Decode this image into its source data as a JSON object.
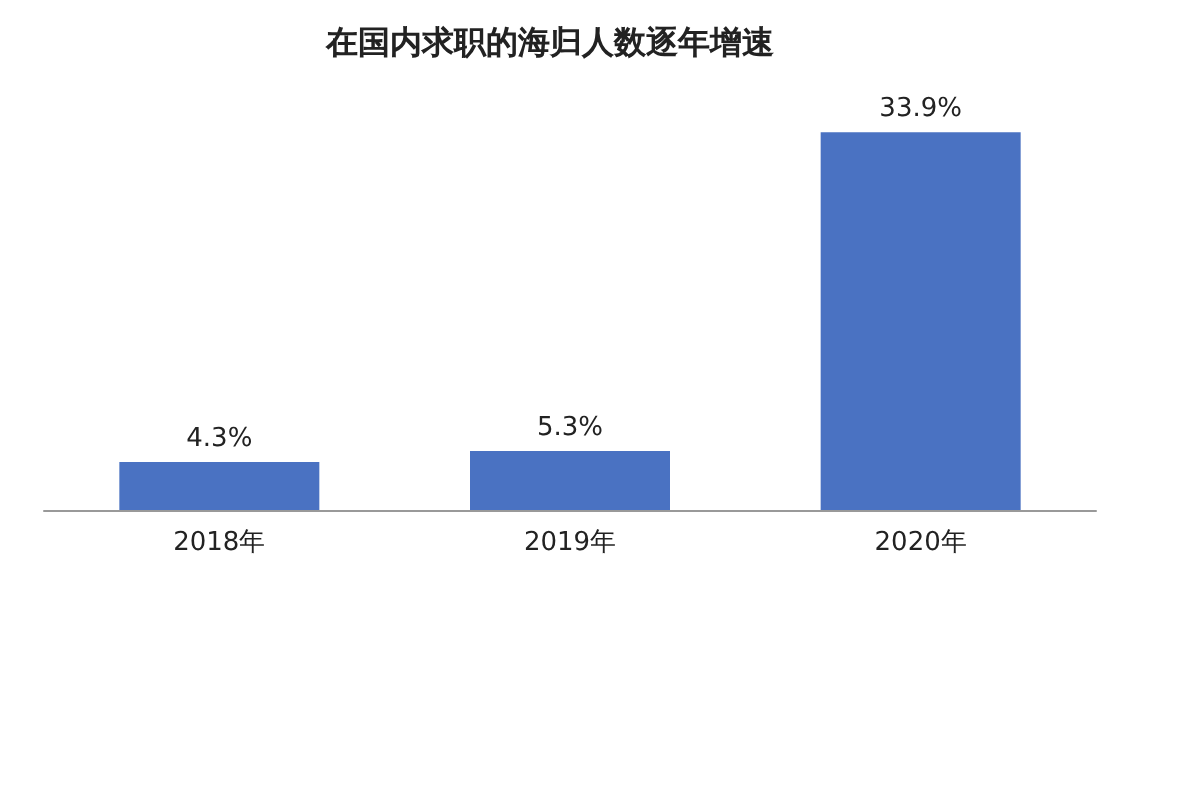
{
  "chart_data": {
    "type": "bar",
    "title": "在国内求职的海归人数逐年增速",
    "categories": [
      "2018年",
      "2019年",
      "2020年"
    ],
    "values": [
      4.3,
      5.3,
      33.9
    ],
    "value_labels": [
      "4.3%",
      "5.3%",
      "33.9%"
    ],
    "color": "#4a72c2"
  }
}
